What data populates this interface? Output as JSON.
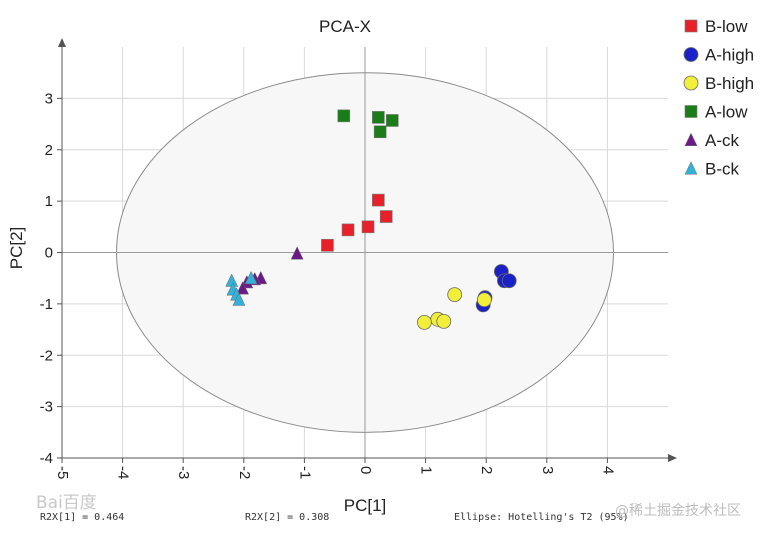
{
  "chart_data": {
    "type": "scatter",
    "title": "PCA-X",
    "xlabel": "PC[1]",
    "ylabel": "PC[2]",
    "xlim": [
      -5,
      5
    ],
    "ylim": [
      -4,
      4
    ],
    "xticks": [
      -5,
      -4,
      -3,
      -2,
      -1,
      0,
      1,
      2,
      3,
      4
    ],
    "yticks": [
      -4,
      -3,
      -2,
      -1,
      0,
      1,
      2,
      3
    ],
    "grid": true,
    "ellipse": {
      "type": "Hotelling's T2 (95%)",
      "rx": 4.1,
      "ry": 3.5
    },
    "legend_position": "top-right",
    "series": [
      {
        "name": "B-low",
        "marker": "square",
        "color": "#e8202a",
        "points": [
          [
            0.22,
            1.02
          ],
          [
            0.35,
            0.7
          ],
          [
            0.05,
            0.5
          ],
          [
            -0.28,
            0.44
          ],
          [
            -0.62,
            0.14
          ]
        ]
      },
      {
        "name": "A-high",
        "marker": "circle",
        "color": "#1a21c6",
        "points": [
          [
            2.25,
            -0.37
          ],
          [
            2.3,
            -0.55
          ],
          [
            2.38,
            -0.55
          ],
          [
            1.95,
            -1.02
          ],
          [
            1.98,
            -0.88
          ]
        ]
      },
      {
        "name": "B-high",
        "marker": "circle",
        "color": "#f2ef3a",
        "points": [
          [
            1.48,
            -0.82
          ],
          [
            1.2,
            -1.3
          ],
          [
            1.3,
            -1.34
          ],
          [
            0.98,
            -1.36
          ],
          [
            1.97,
            -0.92
          ]
        ]
      },
      {
        "name": "A-low",
        "marker": "square",
        "color": "#1a7d1a",
        "points": [
          [
            -0.35,
            2.66
          ],
          [
            0.22,
            2.63
          ],
          [
            0.45,
            2.57
          ],
          [
            0.25,
            2.35
          ]
        ]
      },
      {
        "name": "A-ck",
        "marker": "triangle",
        "color": "#6a1b86",
        "points": [
          [
            -1.12,
            -0.02
          ],
          [
            -1.72,
            -0.5
          ],
          [
            -1.82,
            -0.52
          ],
          [
            -1.95,
            -0.58
          ],
          [
            -2.02,
            -0.7
          ]
        ]
      },
      {
        "name": "B-ck",
        "marker": "triangle",
        "color": "#33b1d9",
        "points": [
          [
            -2.2,
            -0.55
          ],
          [
            -2.18,
            -0.72
          ],
          [
            -2.12,
            -0.82
          ],
          [
            -2.08,
            -0.92
          ],
          [
            -1.88,
            -0.5
          ]
        ]
      }
    ]
  },
  "footer": {
    "r2x1": "R2X[1] = 0.464",
    "r2x2": "R2X[2] = 0.308",
    "ellipse": "Ellipse: Hotelling's T2 (95%)"
  },
  "watermarks": {
    "left": "Bai百度",
    "right": "@稀土掘金技术社区"
  }
}
